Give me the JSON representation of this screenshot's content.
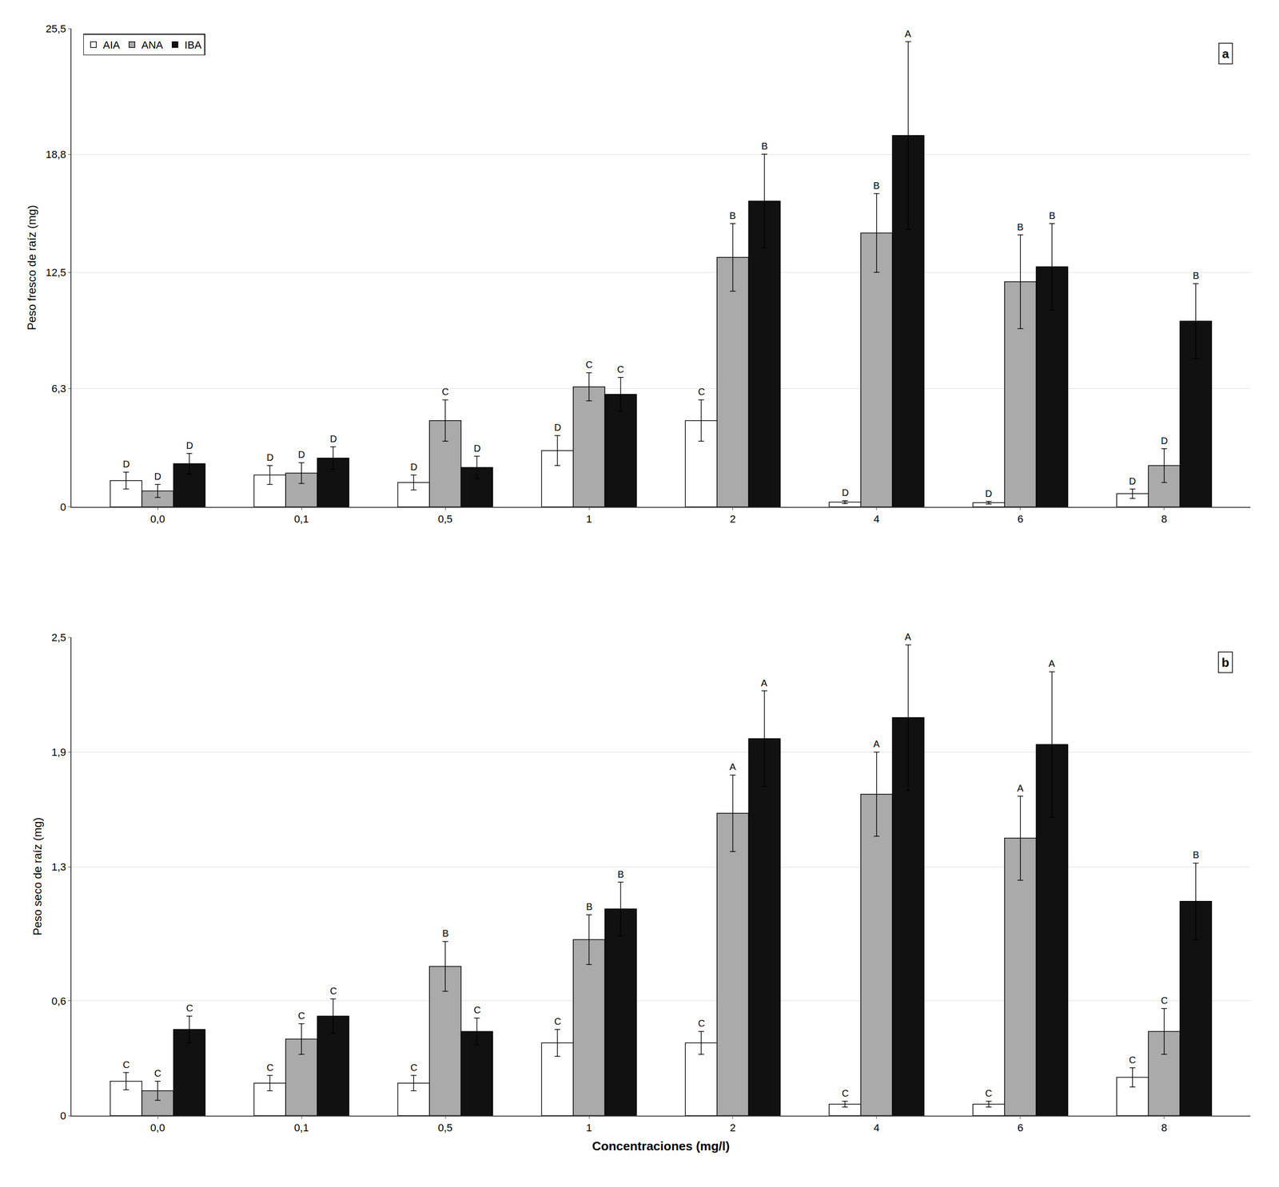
{
  "chart_data": [
    {
      "type": "bar",
      "categories": [
        "0,0",
        "0,1",
        "0,5",
        "1",
        "2",
        "4",
        "6",
        "8"
      ],
      "ylabel": "Peso fresco de raíz (mg)",
      "ylim": [
        0,
        25.5
      ],
      "yticks": [
        0,
        {
          "value": 6.3,
          "label": "6,3"
        },
        {
          "value": 12.5,
          "label": "12,5"
        },
        {
          "value": 18.8,
          "label": "18,8"
        },
        {
          "value": 25.5,
          "label": "25,5"
        }
      ],
      "grid": true,
      "legend": "upper left",
      "annotations": [
        "a"
      ],
      "series": [
        {
          "name": "AIA",
          "color": "#ffffff",
          "values": [
            1.4,
            1.7,
            1.3,
            3.0,
            4.6,
            0.25,
            0.22,
            0.7
          ],
          "errors": [
            0.45,
            0.5,
            0.4,
            0.8,
            1.1,
            0.08,
            0.07,
            0.25
          ],
          "letters": [
            "D",
            "D",
            "D",
            "D",
            "C",
            "D",
            "D",
            "D"
          ]
        },
        {
          "name": "ANA",
          "color": "#aaaaaa",
          "values": [
            0.85,
            1.8,
            4.6,
            6.4,
            13.3,
            14.6,
            12.0,
            2.2
          ],
          "errors": [
            0.35,
            0.55,
            1.1,
            0.75,
            1.8,
            2.1,
            2.5,
            0.9
          ],
          "letters": [
            "D",
            "D",
            "C",
            "C",
            "B",
            "B",
            "B",
            "D"
          ]
        },
        {
          "name": "IBA",
          "color": "#111111",
          "values": [
            2.3,
            2.6,
            2.1,
            6.0,
            16.3,
            19.8,
            12.8,
            9.9
          ],
          "errors": [
            0.55,
            0.6,
            0.6,
            0.9,
            2.5,
            5.0,
            2.3,
            2.0
          ],
          "letters": [
            "D",
            "D",
            "D",
            "C",
            "B",
            "A",
            "B",
            "B"
          ]
        }
      ]
    },
    {
      "type": "bar",
      "categories": [
        "0,0",
        "0,1",
        "0,5",
        "1",
        "2",
        "4",
        "6",
        "8"
      ],
      "xlabel": "Concentraciones (mg/l)",
      "ylabel": "Peso seco de raíz (mg)",
      "ylim": [
        0,
        2.5
      ],
      "yticks": [
        0,
        {
          "value": 0.6,
          "label": "0,6"
        },
        {
          "value": 1.3,
          "label": "1,3"
        },
        {
          "value": 1.9,
          "label": "1,9"
        },
        {
          "value": 2.5,
          "label": "2,5"
        }
      ],
      "grid": true,
      "annotations": [
        "b"
      ],
      "series": [
        {
          "name": "AIA",
          "color": "#ffffff",
          "values": [
            0.18,
            0.17,
            0.17,
            0.38,
            0.38,
            0.06,
            0.06,
            0.2
          ],
          "errors": [
            0.045,
            0.04,
            0.04,
            0.07,
            0.06,
            0.015,
            0.015,
            0.05
          ],
          "letters": [
            "C",
            "C",
            "C",
            "C",
            "C",
            "C",
            "C",
            "C"
          ]
        },
        {
          "name": "ANA",
          "color": "#aaaaaa",
          "values": [
            0.13,
            0.4,
            0.78,
            0.92,
            1.58,
            1.68,
            1.45,
            0.44
          ],
          "errors": [
            0.05,
            0.08,
            0.13,
            0.13,
            0.2,
            0.22,
            0.22,
            0.12
          ],
          "letters": [
            "C",
            "C",
            "B",
            "B",
            "A",
            "A",
            "A",
            "C"
          ]
        },
        {
          "name": "IBA",
          "color": "#111111",
          "values": [
            0.45,
            0.52,
            0.44,
            1.08,
            1.97,
            2.08,
            1.94,
            1.12
          ],
          "errors": [
            0.07,
            0.09,
            0.07,
            0.14,
            0.25,
            0.38,
            0.38,
            0.2
          ],
          "letters": [
            "C",
            "C",
            "C",
            "B",
            "A",
            "A",
            "A",
            "B"
          ]
        }
      ]
    }
  ]
}
